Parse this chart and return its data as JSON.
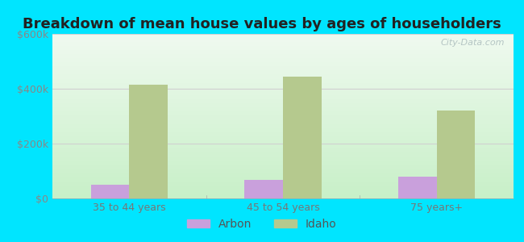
{
  "title": "Breakdown of mean house values by ages of householders",
  "categories": [
    "35 to 44 years",
    "45 to 54 years",
    "75 years+"
  ],
  "arbon_values": [
    50000,
    68000,
    80000
  ],
  "idaho_values": [
    415000,
    445000,
    320000
  ],
  "ylim": [
    0,
    600000
  ],
  "yticks": [
    0,
    200000,
    400000,
    600000
  ],
  "ytick_labels": [
    "$0",
    "$200k",
    "$400k",
    "$600k"
  ],
  "bar_width": 0.25,
  "arbon_color": "#c9a0dc",
  "idaho_color": "#b5c98e",
  "background_outer": "#00e5ff",
  "grid_color": "#d0d0d0",
  "title_fontsize": 13,
  "tick_fontsize": 9,
  "legend_fontsize": 10,
  "watermark_text": "City-Data.com",
  "watermark_color": "#aabcbc",
  "legend_labels": [
    "Arbon",
    "Idaho"
  ]
}
